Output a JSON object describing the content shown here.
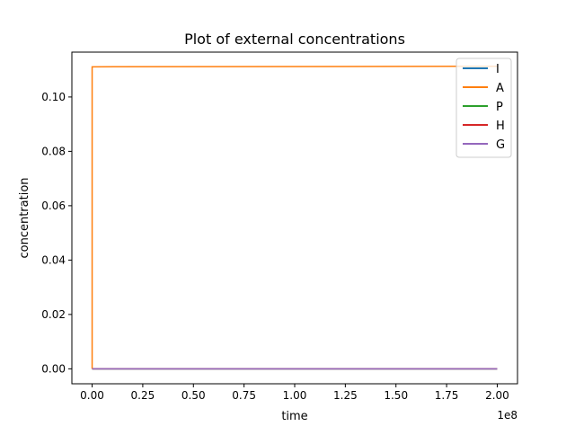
{
  "chart_data": {
    "type": "line",
    "title": "Plot of external concentrations",
    "xlabel": "time",
    "ylabel": "concentration",
    "x_offset_label": "1e8",
    "xlim": [
      -0.1,
      2.1
    ],
    "ylim": [
      -0.0055,
      0.1165
    ],
    "x_ticks": [
      0.0,
      0.25,
      0.5,
      0.75,
      1.0,
      1.25,
      1.5,
      1.75,
      2.0
    ],
    "x_tick_labels": [
      "0.00",
      "0.25",
      "0.50",
      "0.75",
      "1.00",
      "1.25",
      "1.50",
      "1.75",
      "2.00"
    ],
    "y_ticks": [
      0.0,
      0.02,
      0.04,
      0.06,
      0.08,
      0.1
    ],
    "y_tick_labels": [
      "0.00",
      "0.02",
      "0.04",
      "0.06",
      "0.08",
      "0.10"
    ],
    "grid": false,
    "legend_position": "top-right",
    "series": [
      {
        "name": "I",
        "color": "#1f77b4",
        "x": [
          0.0,
          0.0,
          2.0
        ],
        "y": [
          0.0,
          0.0,
          0.0
        ]
      },
      {
        "name": "A",
        "color": "#ff7f0e",
        "x": [
          0.0,
          0.0,
          2.0
        ],
        "y": [
          0.0,
          0.1111,
          0.1113
        ]
      },
      {
        "name": "P",
        "color": "#2ca02c",
        "x": [
          0.0,
          0.0,
          2.0
        ],
        "y": [
          0.0,
          0.0,
          0.0
        ]
      },
      {
        "name": "H",
        "color": "#d62728",
        "x": [
          0.0,
          0.0,
          2.0
        ],
        "y": [
          0.0,
          0.0,
          0.0
        ]
      },
      {
        "name": "G",
        "color": "#9467bd",
        "x": [
          0.0,
          0.0,
          2.0
        ],
        "y": [
          0.0,
          0.0,
          0.0
        ]
      }
    ]
  }
}
